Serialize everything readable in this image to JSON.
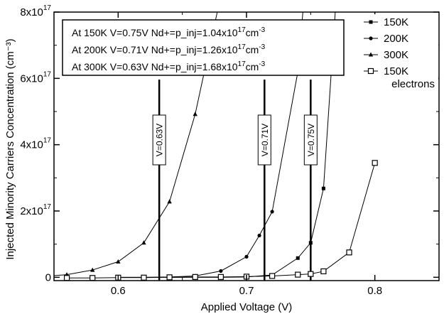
{
  "chart_data": {
    "type": "line",
    "xlabel": "Applied Voltage (V)",
    "ylabel": "Injected Minority Carriers Concentration (cm⁻³)",
    "xlim": [
      0.55,
      0.85
    ],
    "ylim": [
      -0.1,
      8
    ],
    "y_exponent": "17",
    "x_ticks": [
      {
        "value": 0.6,
        "label": "0.6"
      },
      {
        "value": 0.7,
        "label": "0.7"
      },
      {
        "value": 0.8,
        "label": "0.8"
      }
    ],
    "y_ticks": [
      {
        "value": 0,
        "label": "0",
        "exp": ""
      },
      {
        "value": 2,
        "label": "2x10",
        "exp": "17"
      },
      {
        "value": 4,
        "label": "4x10",
        "exp": "17"
      },
      {
        "value": 6,
        "label": "6x10",
        "exp": "17"
      },
      {
        "value": 8,
        "label": "8x10",
        "exp": "17"
      }
    ],
    "annotation_lines": [
      {
        "pre": "At 150K V=0.75V Nd+=p_inj=1.04x10",
        "exp1": "17",
        "post": "cm",
        "exp2": "-3"
      },
      {
        "pre": "At 200K V=0.71V Nd+=p_inj=1.26x10",
        "exp1": "17",
        "post": "cm",
        "exp2": "-3"
      },
      {
        "pre": "At 300K V=0.63V Nd+=p_inj=1.68x10",
        "exp1": "17",
        "post": "cm",
        "exp2": "-3"
      }
    ],
    "vertical_markers": [
      {
        "x": 0.632,
        "label": "V=0.63V"
      },
      {
        "x": 0.714,
        "label": "V=0.71V"
      },
      {
        "x": 0.75,
        "label": "V=0.75V"
      }
    ],
    "legend": {
      "placement": "top-right",
      "entries": [
        {
          "label": "150K",
          "marker": "square-filled"
        },
        {
          "label": "200K",
          "marker": "circle-filled"
        },
        {
          "label": "300K",
          "marker": "triangle-filled"
        },
        {
          "label": "150K",
          "label2": "electrons",
          "marker": "square-open"
        }
      ]
    },
    "series": [
      {
        "name": "300K",
        "marker": "triangle-filled",
        "points": [
          [
            0.54,
            0.02
          ],
          [
            0.56,
            0.08
          ],
          [
            0.58,
            0.22
          ],
          [
            0.6,
            0.47
          ],
          [
            0.62,
            1.04
          ],
          [
            0.64,
            2.28
          ],
          [
            0.66,
            4.92
          ],
          [
            0.68,
            8.5
          ]
        ]
      },
      {
        "name": "200K",
        "marker": "circle-filled",
        "points": [
          [
            0.6,
            0.0
          ],
          [
            0.62,
            0.0
          ],
          [
            0.64,
            0.01
          ],
          [
            0.66,
            0.04
          ],
          [
            0.68,
            0.19
          ],
          [
            0.7,
            0.62
          ],
          [
            0.71,
            1.26
          ],
          [
            0.72,
            1.98
          ],
          [
            0.74,
            6.2
          ],
          [
            0.745,
            8.5
          ]
        ]
      },
      {
        "name": "150K",
        "marker": "square-filled",
        "points": [
          [
            0.6,
            0.0
          ],
          [
            0.64,
            0.0
          ],
          [
            0.68,
            0.0
          ],
          [
            0.7,
            0.01
          ],
          [
            0.72,
            0.07
          ],
          [
            0.74,
            0.58
          ],
          [
            0.75,
            1.04
          ],
          [
            0.76,
            2.68
          ],
          [
            0.77,
            8.5
          ]
        ]
      },
      {
        "name": "150K electrons",
        "marker": "square-open",
        "points": [
          [
            0.56,
            -0.02
          ],
          [
            0.58,
            -0.02
          ],
          [
            0.6,
            -0.01
          ],
          [
            0.62,
            -0.01
          ],
          [
            0.64,
            0.0
          ],
          [
            0.66,
            0.01
          ],
          [
            0.68,
            0.01
          ],
          [
            0.7,
            0.02
          ],
          [
            0.72,
            0.04
          ],
          [
            0.74,
            0.08
          ],
          [
            0.75,
            0.1
          ],
          [
            0.76,
            0.18
          ],
          [
            0.78,
            0.75
          ],
          [
            0.8,
            3.45
          ]
        ]
      }
    ]
  }
}
